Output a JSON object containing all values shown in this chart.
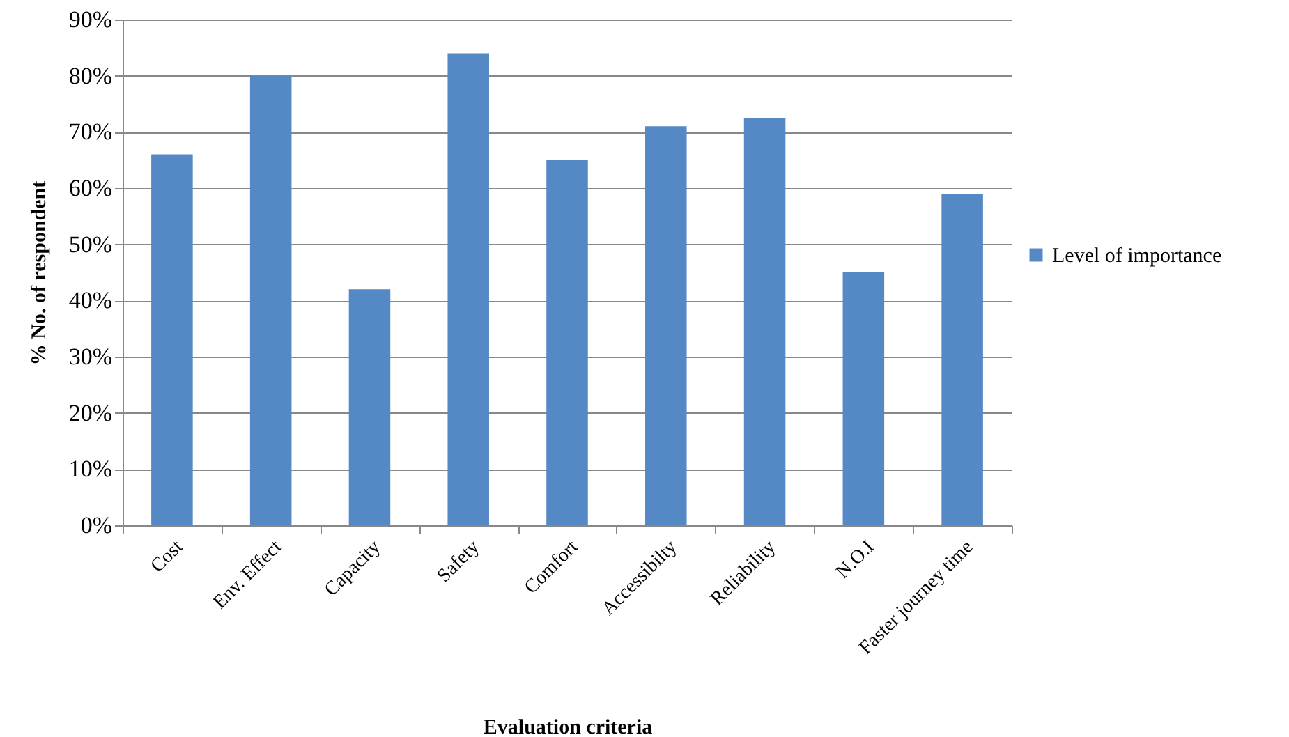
{
  "chart_data": {
    "type": "bar",
    "xlabel": "Evaluation criteria",
    "ylabel": "% No. of respondent",
    "categories": [
      "Cost",
      "Env. Effect",
      "Capacity",
      "Safety",
      "Comfort",
      "Accessibilty",
      "Reliability",
      "N.O.I",
      "Faster journey time"
    ],
    "series": [
      {
        "name": "Level of importance",
        "color": "#5589c6",
        "values": [
          66,
          80,
          42,
          84,
          65,
          71,
          72.5,
          45,
          59
        ]
      }
    ],
    "ylim": [
      0,
      90
    ],
    "yticks": [
      {
        "value": 0,
        "label": "0%"
      },
      {
        "value": 10,
        "label": "10%"
      },
      {
        "value": 20,
        "label": "20%"
      },
      {
        "value": 30,
        "label": "30%"
      },
      {
        "value": 40,
        "label": "40%"
      },
      {
        "value": 50,
        "label": "50%"
      },
      {
        "value": 60,
        "label": "60%"
      },
      {
        "value": 70,
        "label": "70%"
      },
      {
        "value": 80,
        "label": "80%"
      },
      {
        "value": 90,
        "label": "90%"
      }
    ],
    "grid": "y",
    "legend": "right"
  }
}
